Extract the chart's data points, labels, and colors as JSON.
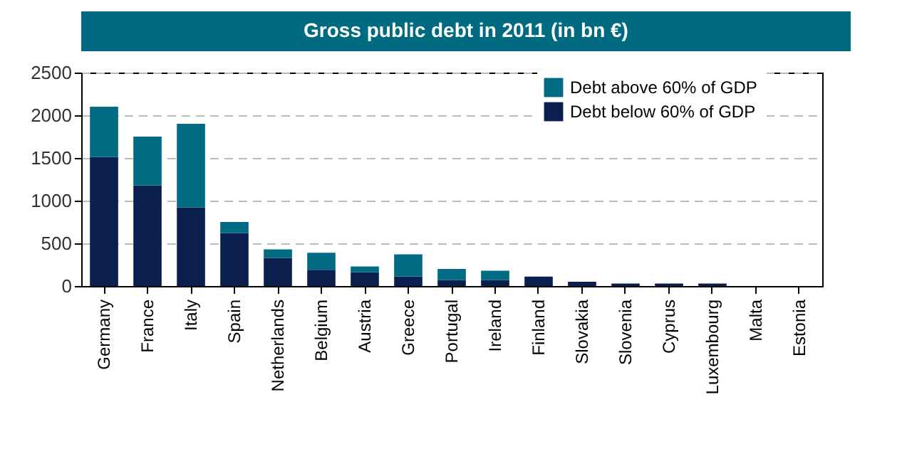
{
  "chart_data": {
    "type": "bar",
    "title": "Gross public debt in 2011 (in bn €)",
    "categories": [
      "Germany",
      "France",
      "Italy",
      "Spain",
      "Netherlands",
      "Belgium",
      "Austria",
      "Greece",
      "Portugal",
      "Ireland",
      "Finland",
      "Slovakia",
      "Slovenia",
      "Cyprus",
      "Luxembourg",
      "Malta",
      "Estonia"
    ],
    "series": [
      {
        "name": "Debt below  60% of GDP",
        "color": "#0b1f4f",
        "values": [
          1510,
          1180,
          920,
          620,
          330,
          190,
          160,
          110,
          70,
          70,
          110,
          50,
          30,
          30,
          30,
          0,
          0
        ]
      },
      {
        "name": "Debt above 60% of GDP",
        "color": "#006b82",
        "values": [
          590,
          570,
          980,
          130,
          100,
          200,
          70,
          260,
          130,
          110,
          0,
          0,
          0,
          0,
          0,
          0,
          0
        ]
      }
    ],
    "stacked": true,
    "ylim": [
      0,
      2500
    ],
    "yticks": [
      0,
      500,
      1000,
      1500,
      2000,
      2500
    ],
    "grid": "y",
    "legend": "top right"
  }
}
